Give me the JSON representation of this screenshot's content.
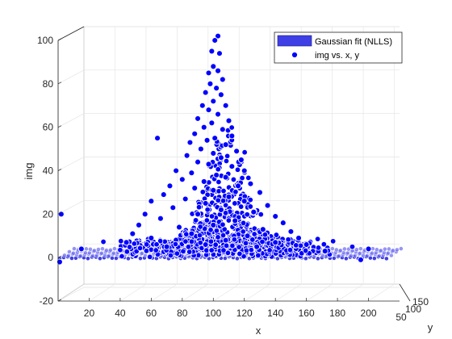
{
  "chart_data": {
    "type": "scatter",
    "title": "",
    "xlabel": "x",
    "ylabel": "img",
    "zlabel": "y",
    "xlim": [
      0,
      220
    ],
    "zlim": [
      -20,
      100
    ],
    "x_ticks": [
      "20",
      "40",
      "60",
      "80",
      "100",
      "120",
      "140",
      "160",
      "180",
      "200"
    ],
    "z_ticks": [
      "-20",
      "0",
      "20",
      "40",
      "60",
      "80",
      "100"
    ],
    "y_ticks": [
      "50",
      "100",
      "150"
    ],
    "grid": true,
    "legend_position": "top-right",
    "surface_fit": {
      "name": "Gaussian fit (NLLS)",
      "peak_x": 105,
      "peak_value": 100,
      "baseline": 0,
      "color": "#3f3fe6"
    },
    "series": [
      {
        "name": "img vs. x, y",
        "color": "#0000ff",
        "edge_color": "#ffffff",
        "points": [
          {
            "x": 103,
            "img": 102
          },
          {
            "x": 101,
            "img": 100
          },
          {
            "x": 99,
            "img": 95
          },
          {
            "x": 104,
            "img": 94
          },
          {
            "x": 100,
            "img": 88
          },
          {
            "x": 97,
            "img": 85
          },
          {
            "x": 103,
            "img": 86
          },
          {
            "x": 106,
            "img": 82
          },
          {
            "x": 98,
            "img": 80
          },
          {
            "x": 102,
            "img": 78
          },
          {
            "x": 95,
            "img": 76
          },
          {
            "x": 105,
            "img": 75
          },
          {
            "x": 100,
            "img": 72
          },
          {
            "x": 93,
            "img": 70
          },
          {
            "x": 108,
            "img": 70
          },
          {
            "x": 97,
            "img": 68
          },
          {
            "x": 103,
            "img": 66
          },
          {
            "x": 90,
            "img": 64
          },
          {
            "x": 110,
            "img": 63
          },
          {
            "x": 99,
            "img": 62
          },
          {
            "x": 94,
            "img": 60
          },
          {
            "x": 106,
            "img": 59
          },
          {
            "x": 88,
            "img": 57
          },
          {
            "x": 112,
            "img": 56
          },
          {
            "x": 101,
            "img": 55
          },
          {
            "x": 96,
            "img": 54
          },
          {
            "x": 85,
            "img": 53
          },
          {
            "x": 108,
            "img": 52
          },
          {
            "x": 64,
            "img": 55
          },
          {
            "x": 92,
            "img": 50
          },
          {
            "x": 115,
            "img": 49
          },
          {
            "x": 100,
            "img": 48
          },
          {
            "x": 83,
            "img": 47
          },
          {
            "x": 105,
            "img": 46
          },
          {
            "x": 118,
            "img": 45
          },
          {
            "x": 90,
            "img": 44
          },
          {
            "x": 97,
            "img": 43
          },
          {
            "x": 112,
            "img": 42
          },
          {
            "x": 76,
            "img": 40
          },
          {
            "x": 120,
            "img": 40
          },
          {
            "x": 86,
            "img": 39
          },
          {
            "x": 102,
            "img": 38
          },
          {
            "x": 108,
            "img": 37
          },
          {
            "x": 80,
            "img": 36
          },
          {
            "x": 94,
            "img": 35
          },
          {
            "x": 124,
            "img": 34
          },
          {
            "x": 72,
            "img": 33
          },
          {
            "x": 116,
            "img": 33
          },
          {
            "x": 88,
            "img": 32
          },
          {
            "x": 100,
            "img": 31
          },
          {
            "x": 130,
            "img": 30
          },
          {
            "x": 68,
            "img": 29
          },
          {
            "x": 110,
            "img": 28
          },
          {
            "x": 82,
            "img": 27
          },
          {
            "x": 120,
            "img": 26
          },
          {
            "x": 60,
            "img": 26
          },
          {
            "x": 95,
            "img": 25
          },
          {
            "x": 135,
            "img": 24
          },
          {
            "x": 74,
            "img": 23
          },
          {
            "x": 105,
            "img": 22
          },
          {
            "x": 126,
            "img": 21
          },
          {
            "x": 56,
            "img": 20
          },
          {
            "x": 90,
            "img": 20
          },
          {
            "x": 140,
            "img": 19
          },
          {
            "x": 66,
            "img": 18
          },
          {
            "x": 114,
            "img": 17
          },
          {
            "x": 145,
            "img": 16
          },
          {
            "x": 52,
            "img": 15
          },
          {
            "x": 100,
            "img": 15
          },
          {
            "x": 78,
            "img": 14
          },
          {
            "x": 132,
            "img": 13
          },
          {
            "x": 150,
            "img": 12
          },
          {
            "x": 48,
            "img": 11
          },
          {
            "x": 86,
            "img": 11
          },
          {
            "x": 122,
            "img": 10
          },
          {
            "x": 155,
            "img": 9
          },
          {
            "x": 60,
            "img": 9
          },
          {
            "x": 108,
            "img": 8
          },
          {
            "x": 140,
            "img": 7
          },
          {
            "x": 44,
            "img": 7
          },
          {
            "x": 95,
            "img": 6
          },
          {
            "x": 160,
            "img": 6
          },
          {
            "x": 70,
            "img": 5
          },
          {
            "x": 128,
            "img": 5
          },
          {
            "x": 2,
            "img": 20
          },
          {
            "x": 15,
            "img": 4
          },
          {
            "x": 1,
            "img": -2
          },
          {
            "x": 172,
            "img": 3
          },
          {
            "x": 200,
            "img": 4
          },
          {
            "x": 195,
            "img": -1
          }
        ]
      }
    ]
  }
}
